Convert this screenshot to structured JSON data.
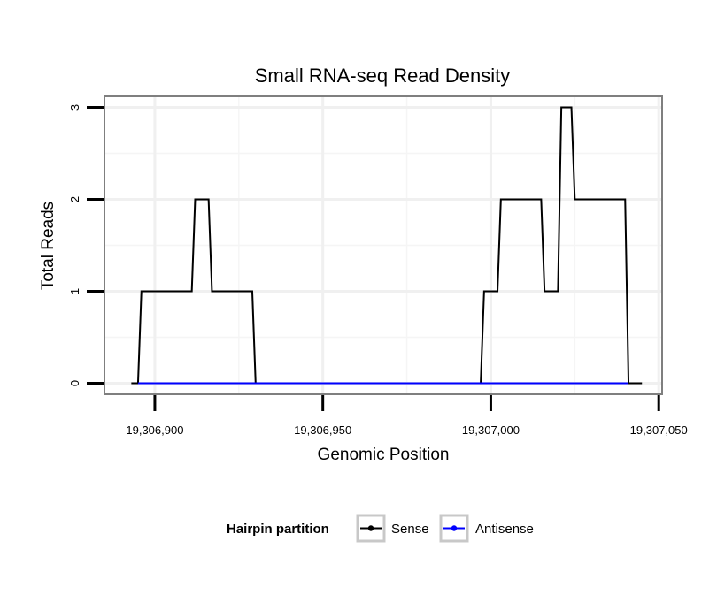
{
  "chart_data": {
    "type": "line",
    "title": "Small RNA-seq Read Density",
    "xlabel": "Genomic Position",
    "ylabel": "Total Reads",
    "xlim": [
      19306885,
      19307051
    ],
    "ylim": [
      -0.12,
      3.12
    ],
    "x_ticks": [
      19306900,
      19306950,
      19307000,
      19307050
    ],
    "x_tick_labels": [
      "19,306,900",
      "19,306,950",
      "19,307,000",
      "19,307,050"
    ],
    "y_ticks": [
      0,
      1,
      2,
      3
    ],
    "y_tick_labels": [
      "0",
      "1",
      "2",
      "3"
    ],
    "grid": true,
    "legend": {
      "title": "Hairpin partition",
      "position": "bottom",
      "entries": [
        {
          "name": "Sense",
          "color": "#000000"
        },
        {
          "name": "Antisense",
          "color": "#0000ff"
        }
      ]
    },
    "series": [
      {
        "name": "Sense",
        "color": "#000000",
        "x": [
          19306893,
          19306895,
          19306896,
          19306897,
          19306910,
          19306911,
          19306912,
          19306913,
          19306916,
          19306917,
          19306918,
          19306919,
          19306929,
          19306930,
          19306931,
          19306997,
          19306998,
          19307002,
          19307003,
          19307004,
          19307015,
          19307016,
          19307020,
          19307021,
          19307024,
          19307025,
          19307040,
          19307041,
          19307045
        ],
        "values": [
          0,
          0,
          1,
          1,
          1,
          1,
          2,
          2,
          2,
          1,
          1,
          1,
          1,
          0,
          0,
          0,
          1,
          1,
          2,
          2,
          2,
          1,
          1,
          3,
          3,
          2,
          2,
          0,
          0
        ]
      },
      {
        "name": "Antisense",
        "color": "#0000ff",
        "x": [
          19306895,
          19307041
        ],
        "values": [
          0,
          0
        ]
      }
    ]
  }
}
